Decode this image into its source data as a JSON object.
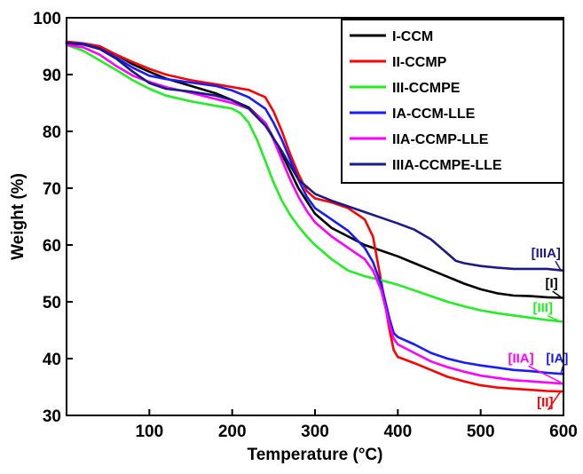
{
  "chart_data": {
    "type": "line",
    "title": "",
    "xlabel": "Temperature (°C)",
    "ylabel": "Weight (%)",
    "xlim": [
      0,
      600
    ],
    "ylim": [
      30,
      100
    ],
    "x_ticks": [
      100,
      200,
      300,
      400,
      500,
      600
    ],
    "x_tick_labels": [
      "100",
      "200",
      "300",
      "400",
      "500",
      "600"
    ],
    "y_ticks": [
      30,
      40,
      50,
      60,
      70,
      80,
      90,
      100
    ],
    "y_tick_labels": [
      "30",
      "40",
      "50",
      "60",
      "70",
      "80",
      "90",
      "100"
    ],
    "grid": false,
    "legend_position": "top-right",
    "series": [
      {
        "name": "I-CCM",
        "color": "#000000",
        "x": [
          0,
          20,
          40,
          60,
          80,
          100,
          120,
          150,
          180,
          200,
          220,
          240,
          260,
          280,
          300,
          320,
          340,
          360,
          380,
          400,
          420,
          440,
          460,
          480,
          500,
          520,
          540,
          560,
          580,
          600
        ],
        "y": [
          95.5,
          95.3,
          94.8,
          93.5,
          91.8,
          90.5,
          89.3,
          88,
          86.7,
          85.5,
          84.2,
          81.5,
          76,
          70,
          65.5,
          63,
          61.5,
          60,
          59,
          58,
          56.8,
          55.6,
          54.4,
          53.2,
          52.2,
          51.5,
          51.1,
          51,
          50.8,
          50.7
        ]
      },
      {
        "name": "II-CCMP",
        "color": "#ff0000",
        "x": [
          0,
          20,
          40,
          60,
          80,
          100,
          120,
          150,
          180,
          200,
          220,
          240,
          250,
          260,
          270,
          280,
          290,
          300,
          320,
          340,
          360,
          370,
          380,
          390,
          395,
          400,
          420,
          440,
          460,
          480,
          500,
          520,
          540,
          560,
          580,
          600
        ],
        "y": [
          95.8,
          95.5,
          95,
          93.5,
          92.2,
          91,
          90,
          89,
          88.3,
          87.8,
          87.3,
          86,
          83.5,
          80,
          76,
          72.5,
          69.5,
          68.2,
          67.5,
          66.5,
          64.5,
          61.5,
          53.5,
          45,
          41.5,
          40.3,
          39.2,
          38,
          36.8,
          36,
          35.3,
          34.9,
          34.7,
          34.5,
          34.3,
          34.2
        ]
      },
      {
        "name": "III-CCMPE",
        "color": "#22ee22",
        "x": [
          0,
          20,
          40,
          60,
          80,
          100,
          120,
          150,
          180,
          200,
          210,
          220,
          230,
          240,
          250,
          260,
          270,
          280,
          290,
          300,
          320,
          340,
          360,
          380,
          400,
          420,
          440,
          460,
          480,
          500,
          520,
          540,
          560,
          580,
          600
        ],
        "y": [
          95.2,
          94.2,
          92.5,
          90.8,
          89,
          87.5,
          86.3,
          85.3,
          84.5,
          84,
          83.2,
          81.5,
          78.5,
          74.8,
          71,
          67.8,
          65.3,
          63.3,
          61.5,
          60,
          57.5,
          55.5,
          54.5,
          53.8,
          53,
          52,
          51,
          50,
          49.2,
          48.5,
          48,
          47.6,
          47.2,
          46.8,
          46.5
        ]
      },
      {
        "name": "IA-CCM-LLE",
        "color": "#1a1aff",
        "x": [
          0,
          20,
          40,
          60,
          80,
          100,
          120,
          150,
          180,
          200,
          220,
          240,
          250,
          260,
          270,
          280,
          290,
          300,
          320,
          340,
          360,
          370,
          380,
          390,
          395,
          400,
          420,
          440,
          460,
          480,
          500,
          520,
          540,
          560,
          580,
          600
        ],
        "y": [
          95.6,
          95.4,
          94.6,
          93,
          91.2,
          89.8,
          89.2,
          88.6,
          88,
          87.2,
          86,
          84,
          81.5,
          78.5,
          75,
          71.5,
          68.5,
          66.5,
          64.5,
          62.5,
          59.5,
          57,
          53,
          47,
          44.5,
          43.8,
          42.5,
          41,
          40,
          39.3,
          38.8,
          38.4,
          38,
          37.8,
          37.5,
          37.3
        ]
      },
      {
        "name": "IIA-CCMP-LLE",
        "color": "#ff00ff",
        "x": [
          0,
          20,
          40,
          60,
          80,
          100,
          120,
          150,
          180,
          200,
          220,
          240,
          250,
          260,
          270,
          280,
          290,
          300,
          320,
          340,
          360,
          370,
          380,
          390,
          395,
          400,
          420,
          440,
          460,
          480,
          500,
          520,
          540,
          560,
          580,
          600
        ],
        "y": [
          95.2,
          94.8,
          93.5,
          91.5,
          89.8,
          88.7,
          87.8,
          86.8,
          85.7,
          85,
          84,
          81.5,
          78.5,
          75,
          71.5,
          68.5,
          66,
          64,
          61.5,
          59.5,
          57.5,
          55.5,
          52,
          46,
          43.5,
          42.5,
          41,
          39.5,
          38.5,
          37.7,
          37,
          36.6,
          36.2,
          36,
          35.8,
          35.6
        ]
      },
      {
        "name": "IIIA-CCMPE-LLE",
        "color": "#1a1a8c",
        "x": [
          0,
          20,
          40,
          60,
          80,
          100,
          120,
          150,
          180,
          200,
          220,
          240,
          260,
          280,
          300,
          320,
          340,
          360,
          380,
          400,
          420,
          440,
          460,
          470,
          480,
          500,
          520,
          540,
          560,
          580,
          600
        ],
        "y": [
          95.6,
          95.3,
          94.5,
          92.8,
          90.5,
          88.5,
          87.5,
          87,
          86.3,
          85.5,
          84,
          81,
          76.5,
          71.5,
          69,
          67.8,
          66.8,
          65.8,
          64.8,
          63.8,
          62.7,
          61,
          58.5,
          57.2,
          56.8,
          56.3,
          56,
          55.8,
          55.8,
          55.8,
          55.5
        ]
      }
    ],
    "annotations": [
      {
        "text": "[IIIA]",
        "color": "#1a1a8c",
        "x": 561,
        "y": 57.8,
        "point_x": 597,
        "point_y": 55.5
      },
      {
        "text": "[I]",
        "color": "#000000",
        "x": 578,
        "y": 52.5,
        "point_x": 597,
        "point_y": 50.8
      },
      {
        "text": "[III]",
        "color": "#22ee22",
        "x": 563,
        "y": 48.2,
        "point_x": 595,
        "point_y": 46.6
      },
      {
        "text": "[IIA]",
        "color": "#ff00ff",
        "x": 533,
        "y": 39.3,
        "point_x": 597,
        "point_y": 35.8
      },
      {
        "text": "[IA]",
        "color": "#1a1aff",
        "x": 579,
        "y": 39.3,
        "point_x": 597,
        "point_y": 37.4
      },
      {
        "text": "[II]",
        "color": "#ff0000",
        "x": 568,
        "y": 31.6,
        "point_x": 597,
        "point_y": 34.3
      }
    ]
  }
}
